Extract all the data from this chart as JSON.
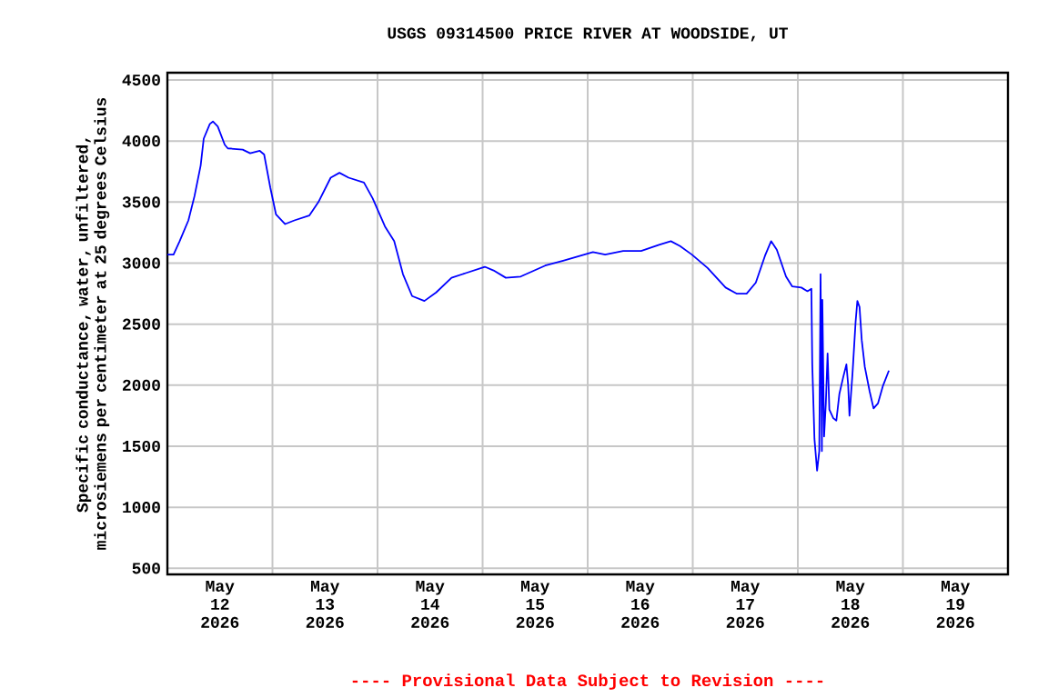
{
  "chart_data": {
    "type": "line",
    "title": "USGS 09314500 PRICE RIVER AT WOODSIDE, UT",
    "ylabel": "Specific conductance, water, unfiltered, microsiemens per centimeter at 25 degrees Celsius",
    "annotations": [
      "---- Provisional Data Subject to Revision ----"
    ],
    "xlim": [
      "2026-05-12",
      "2026-05-20"
    ],
    "ylim": [
      450,
      4560
    ],
    "yticks": [
      500,
      1000,
      1500,
      2000,
      2500,
      3000,
      3500,
      4000,
      4500
    ],
    "xticks": [
      {
        "value": "2026-05-12T12:00",
        "label": "May 12 2026"
      },
      {
        "value": "2026-05-13",
        "label": null
      },
      {
        "value": "2026-05-13T12:00",
        "label": "May 13 2026"
      },
      {
        "value": "2026-05-14",
        "label": null
      },
      {
        "value": "2026-05-14T12:00",
        "label": "May 14 2026"
      },
      {
        "value": "2026-05-15",
        "label": null
      },
      {
        "value": "2026-05-15T12:00",
        "label": "May 15 2026"
      },
      {
        "value": "2026-05-16",
        "label": null
      },
      {
        "value": "2026-05-16T12:00",
        "label": "May 16 2026"
      },
      {
        "value": "2026-05-17",
        "label": null
      },
      {
        "value": "2026-05-17T12:00",
        "label": "May 17 2026"
      },
      {
        "value": "2026-05-18",
        "label": null
      },
      {
        "value": "2026-05-18T12:00",
        "label": "May 18 2026"
      },
      {
        "value": "2026-05-19",
        "label": null
      },
      {
        "value": "2026-05-19T12:00",
        "label": "May 19 2026"
      }
    ],
    "grid": true,
    "x": [
      "2026-05-12T00:00",
      "2026-05-12T01:24",
      "2026-05-12T02:48",
      "2026-05-12T04:48",
      "2026-05-12T06:12",
      "2026-05-12T07:36",
      "2026-05-12T08:18",
      "2026-05-12T09:42",
      "2026-05-12T10:24",
      "2026-05-12T11:30",
      "2026-05-12T13:06",
      "2026-05-12T13:48",
      "2026-05-12T17:12",
      "2026-05-12T18:54",
      "2026-05-12T21:06",
      "2026-05-12T22:06",
      "2026-05-12T23:30",
      "2026-05-13T00:48",
      "2026-05-13T02:54",
      "2026-05-13T05:00",
      "2026-05-13T08:24",
      "2026-05-13T10:30",
      "2026-05-13T13:18",
      "2026-05-13T15:18",
      "2026-05-13T17:24",
      "2026-05-13T20:54",
      "2026-05-13T22:54",
      "2026-05-14T01:42",
      "2026-05-14T03:48",
      "2026-05-14T05:48",
      "2026-05-14T07:54",
      "2026-05-14T10:42",
      "2026-05-14T13:24",
      "2026-05-14T16:54",
      "2026-05-14T20:18",
      "2026-05-15T00:30",
      "2026-05-15T02:30",
      "2026-05-15T05:18",
      "2026-05-15T08:42",
      "2026-05-15T14:18",
      "2026-05-15T18:24",
      "2026-05-16T01:12",
      "2026-05-16T04:00",
      "2026-05-16T08:06",
      "2026-05-16T12:12",
      "2026-05-16T16:18",
      "2026-05-16T19:00",
      "2026-05-16T21:06",
      "2026-05-16T23:48",
      "2026-05-17T03:24",
      "2026-05-17T07:30",
      "2026-05-17T10:00",
      "2026-05-17T12:18",
      "2026-05-17T14:24",
      "2026-05-17T16:30",
      "2026-05-17T17:54",
      "2026-05-17T19:12",
      "2026-05-17T21:18",
      "2026-05-17T22:42",
      "2026-05-18T00:48",
      "2026-05-18T02:12",
      "2026-05-18T03:06",
      "2026-05-18T03:18",
      "2026-05-18T03:48",
      "2026-05-18T04:24",
      "2026-05-18T04:54",
      "2026-05-18T05:12",
      "2026-05-18T05:30",
      "2026-05-18T05:36",
      "2026-05-18T06:00",
      "2026-05-18T06:24",
      "2026-05-18T06:48",
      "2026-05-18T07:12",
      "2026-05-18T08:06",
      "2026-05-18T08:48",
      "2026-05-18T09:30",
      "2026-05-18T10:24",
      "2026-05-18T11:06",
      "2026-05-18T11:30",
      "2026-05-18T11:48",
      "2026-05-18T12:30",
      "2026-05-18T13:12",
      "2026-05-18T13:36",
      "2026-05-18T14:06",
      "2026-05-18T14:36",
      "2026-05-18T15:18",
      "2026-05-18T16:24",
      "2026-05-18T17:18",
      "2026-05-18T18:18",
      "2026-05-18T19:24",
      "2026-05-18T20:48"
    ],
    "series": [
      {
        "color": "#0000ff",
        "values": [
          3070,
          3070,
          3180,
          3350,
          3550,
          3800,
          4020,
          4140,
          4160,
          4120,
          3970,
          3940,
          3930,
          3900,
          3920,
          3890,
          3620,
          3400,
          3320,
          3350,
          3390,
          3500,
          3700,
          3740,
          3700,
          3660,
          3530,
          3300,
          3180,
          2910,
          2730,
          2690,
          2760,
          2880,
          2920,
          2970,
          2940,
          2880,
          2890,
          2980,
          3020,
          3090,
          3070,
          3100,
          3100,
          3150,
          3180,
          3140,
          3070,
          2960,
          2800,
          2750,
          2750,
          2840,
          3060,
          3180,
          3110,
          2890,
          2810,
          2800,
          2770,
          2790,
          2170,
          1560,
          1300,
          1460,
          2910,
          1460,
          2700,
          1580,
          1850,
          2260,
          1800,
          1730,
          1710,
          1930,
          2070,
          2170,
          2000,
          1750,
          2100,
          2520,
          2690,
          2640,
          2370,
          2150,
          1950,
          1810,
          1850,
          1990,
          2120
        ]
      }
    ]
  }
}
